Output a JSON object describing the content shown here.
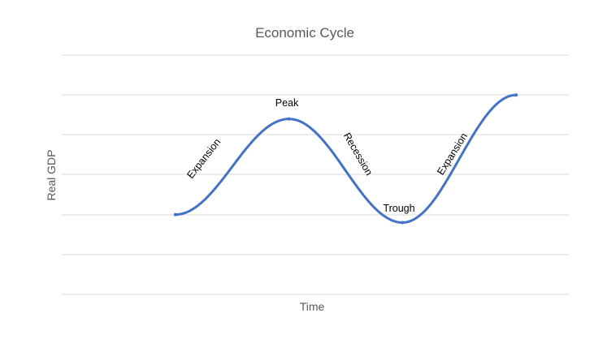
{
  "chart_data": {
    "type": "line",
    "title": "Economic Cycle",
    "xlabel": "Time",
    "ylabel": "Real GDP",
    "ylim": [
      0,
      6
    ],
    "xlim": [
      0,
      12.5
    ],
    "grid": true,
    "legend": "none",
    "tick_labels_shown": false,
    "series_color": "#4472c4",
    "gridline_color": "#d9d9d9",
    "x": [
      2.8,
      5.6,
      8.4,
      11.2
    ],
    "y": [
      2.0,
      4.4,
      1.8,
      5.0
    ],
    "annotations": [
      {
        "text": "Expansion",
        "phase": "rising"
      },
      {
        "text": "Peak",
        "phase": "peak"
      },
      {
        "text": "Recession",
        "phase": "falling"
      },
      {
        "text": "Trough",
        "phase": "trough"
      },
      {
        "text": "Expansion",
        "phase": "rising"
      }
    ]
  }
}
